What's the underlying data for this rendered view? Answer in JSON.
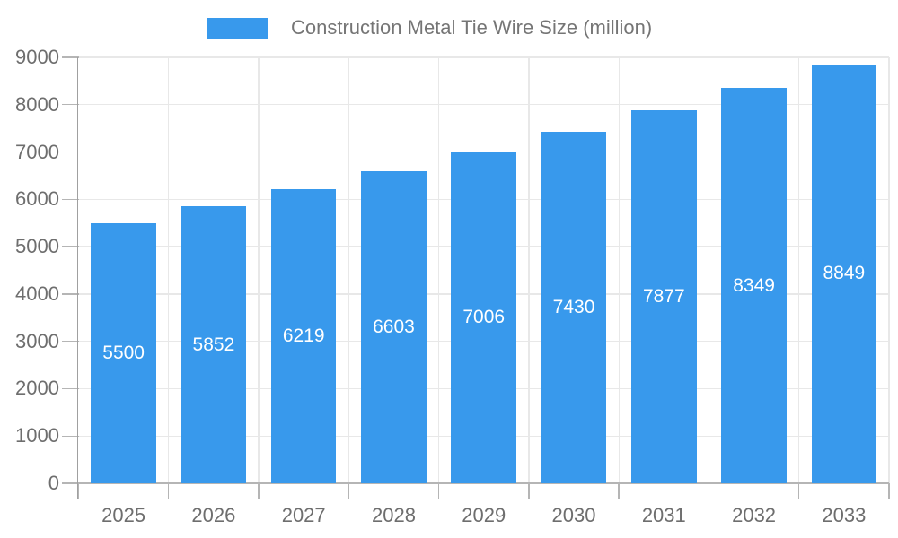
{
  "chart_data": {
    "type": "bar",
    "title": "Construction Metal Tie Wire Size (million)",
    "legend": {
      "label": "Construction Metal Tie Wire Size (million)",
      "position": "top"
    },
    "categories": [
      "2025",
      "2026",
      "2027",
      "2028",
      "2029",
      "2030",
      "2031",
      "2032",
      "2033"
    ],
    "series": [
      {
        "name": "Construction Metal Tie Wire Size (million)",
        "values": [
          5500,
          5852,
          6219,
          6603,
          7006,
          7430,
          7877,
          8349,
          8849
        ]
      }
    ],
    "xlabel": "",
    "ylabel": "",
    "ylim": [
      0,
      9000
    ],
    "yticks": [
      0,
      1000,
      2000,
      3000,
      4000,
      5000,
      6000,
      7000,
      8000,
      9000
    ],
    "grid": true,
    "bar_value_labels_inside": true,
    "colors": {
      "bar": "#3899EC",
      "bar_label": "#FFFFFF",
      "grid_line": "#E8E8E8",
      "axis_line": "#A0A0A0",
      "tick_line": "#B5B5B5",
      "axis_label": "#6E6E6E",
      "legend_text": "#757575",
      "background": "#FFFFFF"
    }
  }
}
